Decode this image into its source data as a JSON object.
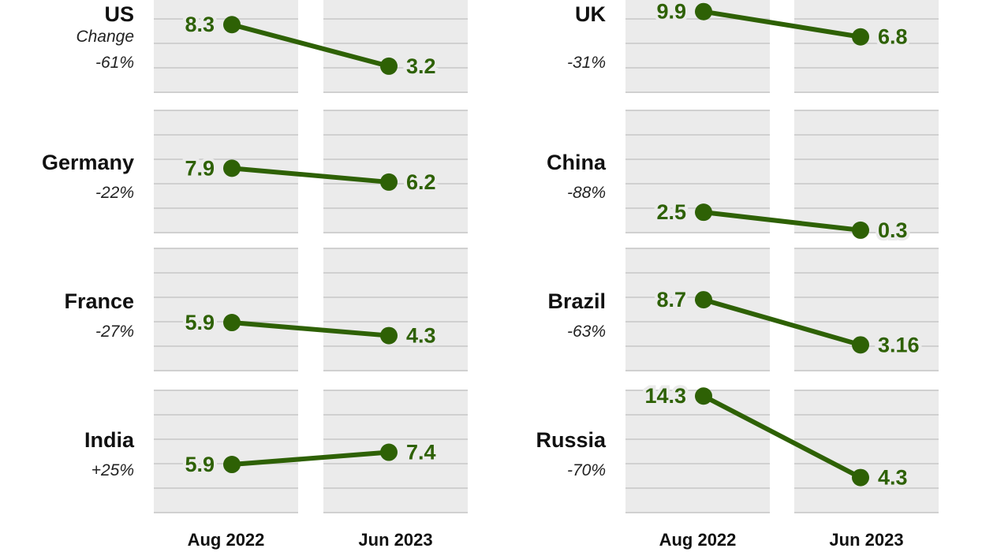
{
  "chart_data": {
    "type": "line",
    "subtype": "slope small multiples",
    "x_categories": [
      "Aug 2022",
      "Jun 2023"
    ],
    "change_label": "Change",
    "ylim": [
      0,
      15
    ],
    "grid_step": 3,
    "grid": true,
    "colors": {
      "line": "#2e6105",
      "panel": "#ebebeb",
      "grid": "#d0d0d0"
    },
    "panels": [
      {
        "name": "US",
        "change": "-61%",
        "values": [
          8.3,
          3.2
        ],
        "value_labels": [
          "8.3",
          "3.2"
        ]
      },
      {
        "name": "UK",
        "change": "-31%",
        "values": [
          9.9,
          6.8
        ],
        "value_labels": [
          "9.9",
          "6.8"
        ]
      },
      {
        "name": "Germany",
        "change": "-22%",
        "values": [
          7.9,
          6.2
        ],
        "value_labels": [
          "7.9",
          "6.2"
        ]
      },
      {
        "name": "China",
        "change": "-88%",
        "values": [
          2.5,
          0.3
        ],
        "value_labels": [
          "2.5",
          "0.3"
        ]
      },
      {
        "name": "France",
        "change": "-27%",
        "values": [
          5.9,
          4.3
        ],
        "value_labels": [
          "5.9",
          "4.3"
        ]
      },
      {
        "name": "Brazil",
        "change": "-63%",
        "values": [
          8.7,
          3.16
        ],
        "value_labels": [
          "8.7",
          "3.16"
        ]
      },
      {
        "name": "India",
        "change": "+25%",
        "values": [
          5.9,
          7.4
        ],
        "value_labels": [
          "5.9",
          "7.4"
        ]
      },
      {
        "name": "Russia",
        "change": "-70%",
        "values": [
          14.3,
          4.3
        ],
        "value_labels": [
          "14.3",
          "4.3"
        ]
      }
    ]
  }
}
